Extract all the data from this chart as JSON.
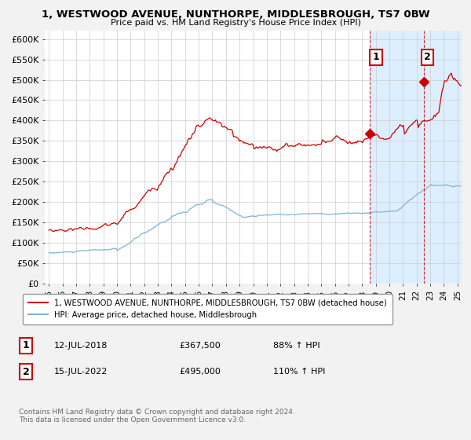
{
  "title": "1, WESTWOOD AVENUE, NUNTHORPE, MIDDLESBROUGH, TS7 0BW",
  "subtitle": "Price paid vs. HM Land Registry's House Price Index (HPI)",
  "legend_line1": "1, WESTWOOD AVENUE, NUNTHORPE, MIDDLESBROUGH, TS7 0BW (detached house)",
  "legend_line2": "HPI: Average price, detached house, Middlesbrough",
  "annotation1_label": "1",
  "annotation1_date": "12-JUL-2018",
  "annotation1_price": "£367,500",
  "annotation1_hpi": "88% ↑ HPI",
  "annotation2_label": "2",
  "annotation2_date": "15-JUL-2022",
  "annotation2_price": "£495,000",
  "annotation2_hpi": "110% ↑ HPI",
  "footnote": "Contains HM Land Registry data © Crown copyright and database right 2024.\nThis data is licensed under the Open Government Licence v3.0.",
  "red_line_color": "#cc0000",
  "blue_line_color": "#7fb3d3",
  "background_color": "#f2f2f2",
  "plot_bg_color": "#ffffff",
  "highlight_bg_color": "#ddeeff",
  "grid_color": "#cccccc",
  "marker1_x_year": 2018.54,
  "marker2_x_year": 2022.54,
  "marker1_y": 367500,
  "marker2_y": 495000,
  "ylim": [
    0,
    620000
  ],
  "xlim_start": 1994.7,
  "xlim_end": 2025.3,
  "ytick_step": 50000,
  "xtick_years": [
    1995,
    1996,
    1997,
    1998,
    1999,
    2000,
    2001,
    2002,
    2003,
    2004,
    2005,
    2006,
    2007,
    2008,
    2009,
    2010,
    2011,
    2012,
    2013,
    2014,
    2015,
    2016,
    2017,
    2018,
    2019,
    2020,
    2021,
    2022,
    2023,
    2024,
    2025
  ]
}
